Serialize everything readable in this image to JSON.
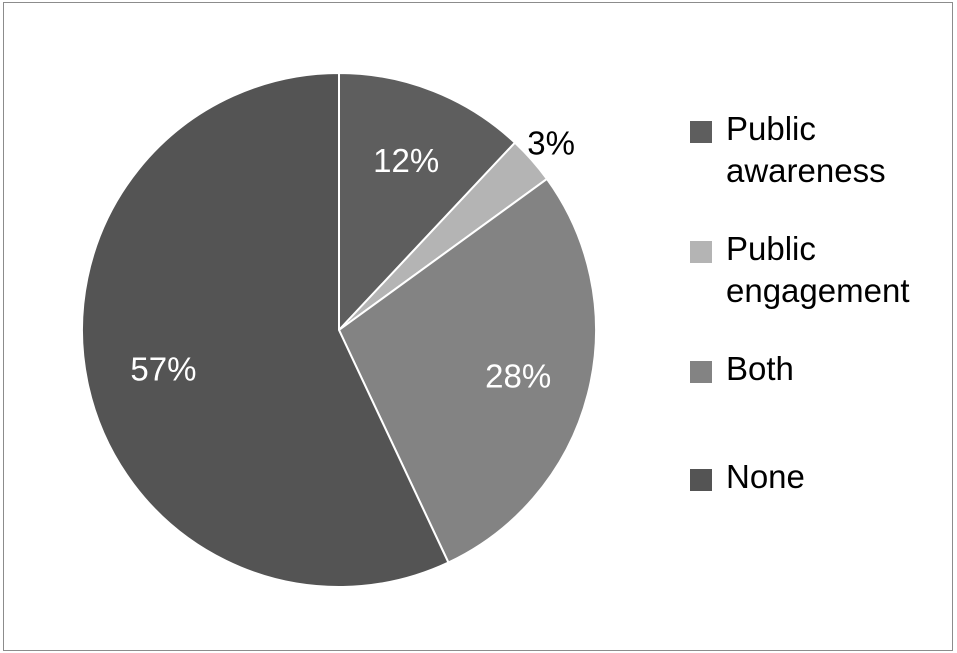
{
  "chart_data": {
    "type": "pie",
    "slices": [
      {
        "label": "Public awareness",
        "value": 12,
        "display": "12%",
        "color": "#5e5e5e",
        "label_color": "#ffffff"
      },
      {
        "label": "Public engagement",
        "value": 3,
        "display": "3%",
        "color": "#b4b4b4",
        "label_color": "#000000"
      },
      {
        "label": "Both",
        "value": 28,
        "display": "28%",
        "color": "#838383",
        "label_color": "#ffffff"
      },
      {
        "label": "None",
        "value": 57,
        "display": "57%",
        "color": "#545454",
        "label_color": "#ffffff"
      }
    ],
    "start_angle": "12 o'clock",
    "direction": "clockwise",
    "legend_position": "right",
    "title": ""
  }
}
